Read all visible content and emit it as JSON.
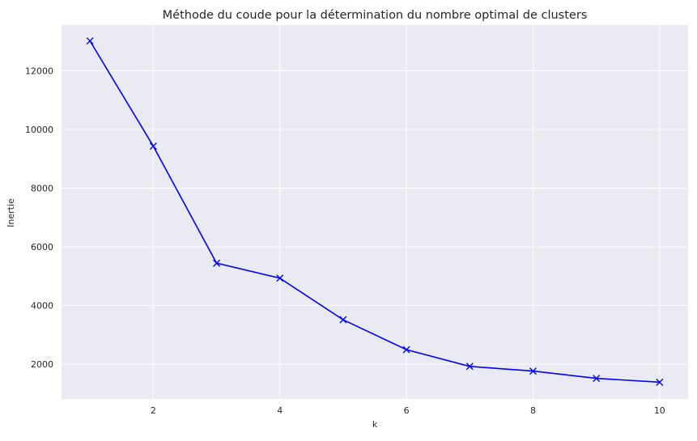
{
  "chart_data": {
    "type": "line",
    "title": "Méthode du coude pour la détermination du nombre optimal de clusters",
    "xlabel": "k",
    "ylabel": "Inertie",
    "xlim": [
      0.55,
      10.45
    ],
    "ylim": [
      810,
      13560
    ],
    "xticks": [
      2,
      4,
      6,
      8,
      10
    ],
    "yticks": [
      2000,
      4000,
      6000,
      8000,
      10000,
      12000
    ],
    "grid": true,
    "marker": "x",
    "colors": {
      "line": "#0000ff",
      "background": "#eaeaf2",
      "grid": "#ffffff"
    },
    "x": [
      1,
      2,
      3,
      4,
      5,
      6,
      7,
      8,
      9,
      10
    ],
    "y": [
      13020,
      9430,
      5440,
      4930,
      3510,
      2490,
      1920,
      1760,
      1510,
      1380
    ]
  }
}
